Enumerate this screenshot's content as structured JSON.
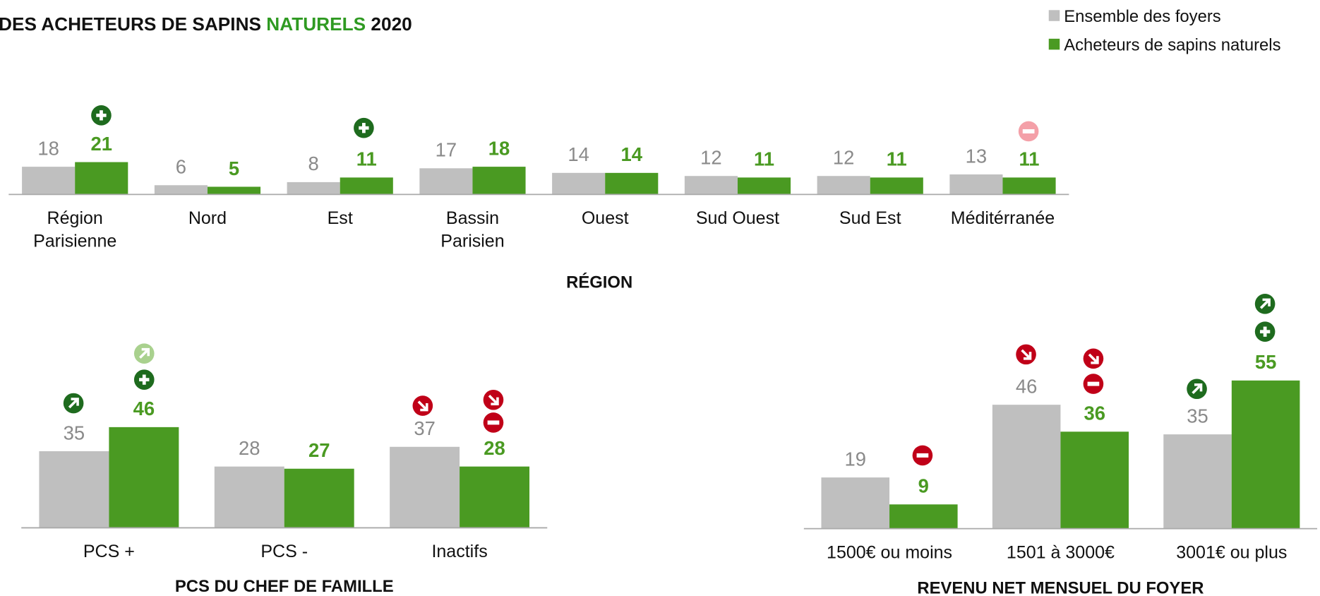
{
  "title": [
    "DES ACHETEURS DE SAPINS",
    "NATURELS",
    "2020"
  ],
  "chart_data": [
    {
      "type": "bar",
      "xlabel": "RÉGION",
      "categories": [
        "Région\nParisienne",
        "Nord",
        "Est",
        "Bassin\nParisien",
        "Ouest",
        "Sud Ouest",
        "Sud Est",
        "Méditérranée"
      ],
      "series": [
        {
          "name": "Ensemble des foyers",
          "color": "#bfbfbf",
          "values": [
            18,
            6,
            8,
            17,
            14,
            12,
            12,
            13
          ]
        },
        {
          "name": "Acheteurs de sapins naturels",
          "color": "#4a9a22",
          "values": [
            21,
            5,
            11,
            18,
            14,
            11,
            11,
            11
          ]
        }
      ],
      "ylim": [
        0,
        100
      ]
    },
    {
      "type": "bar",
      "xlabel": "PCS DU CHEF DE FAMILLE",
      "annotation": "*",
      "categories": [
        "PCS +",
        "PCS -",
        "Inactifs"
      ],
      "series": [
        {
          "color": "#bfbfbf",
          "values": [
            35,
            28,
            37
          ]
        },
        {
          "color": "#4a9a22",
          "values": [
            46,
            27,
            28
          ]
        }
      ],
      "ylim": [
        0,
        100
      ]
    },
    {
      "type": "bar",
      "xlabel": "REVENU NET MENSUEL DU FOYER",
      "categories": [
        "1500€ ou moins",
        "1501 à 3000€",
        "3001€ ou plus"
      ],
      "series": [
        {
          "color": "#bfbfbf",
          "values": [
            19,
            46,
            35
          ]
        },
        {
          "color": "#4a9a22",
          "values": [
            9,
            36,
            55
          ]
        }
      ],
      "ylim": [
        0,
        100
      ]
    }
  ]
}
